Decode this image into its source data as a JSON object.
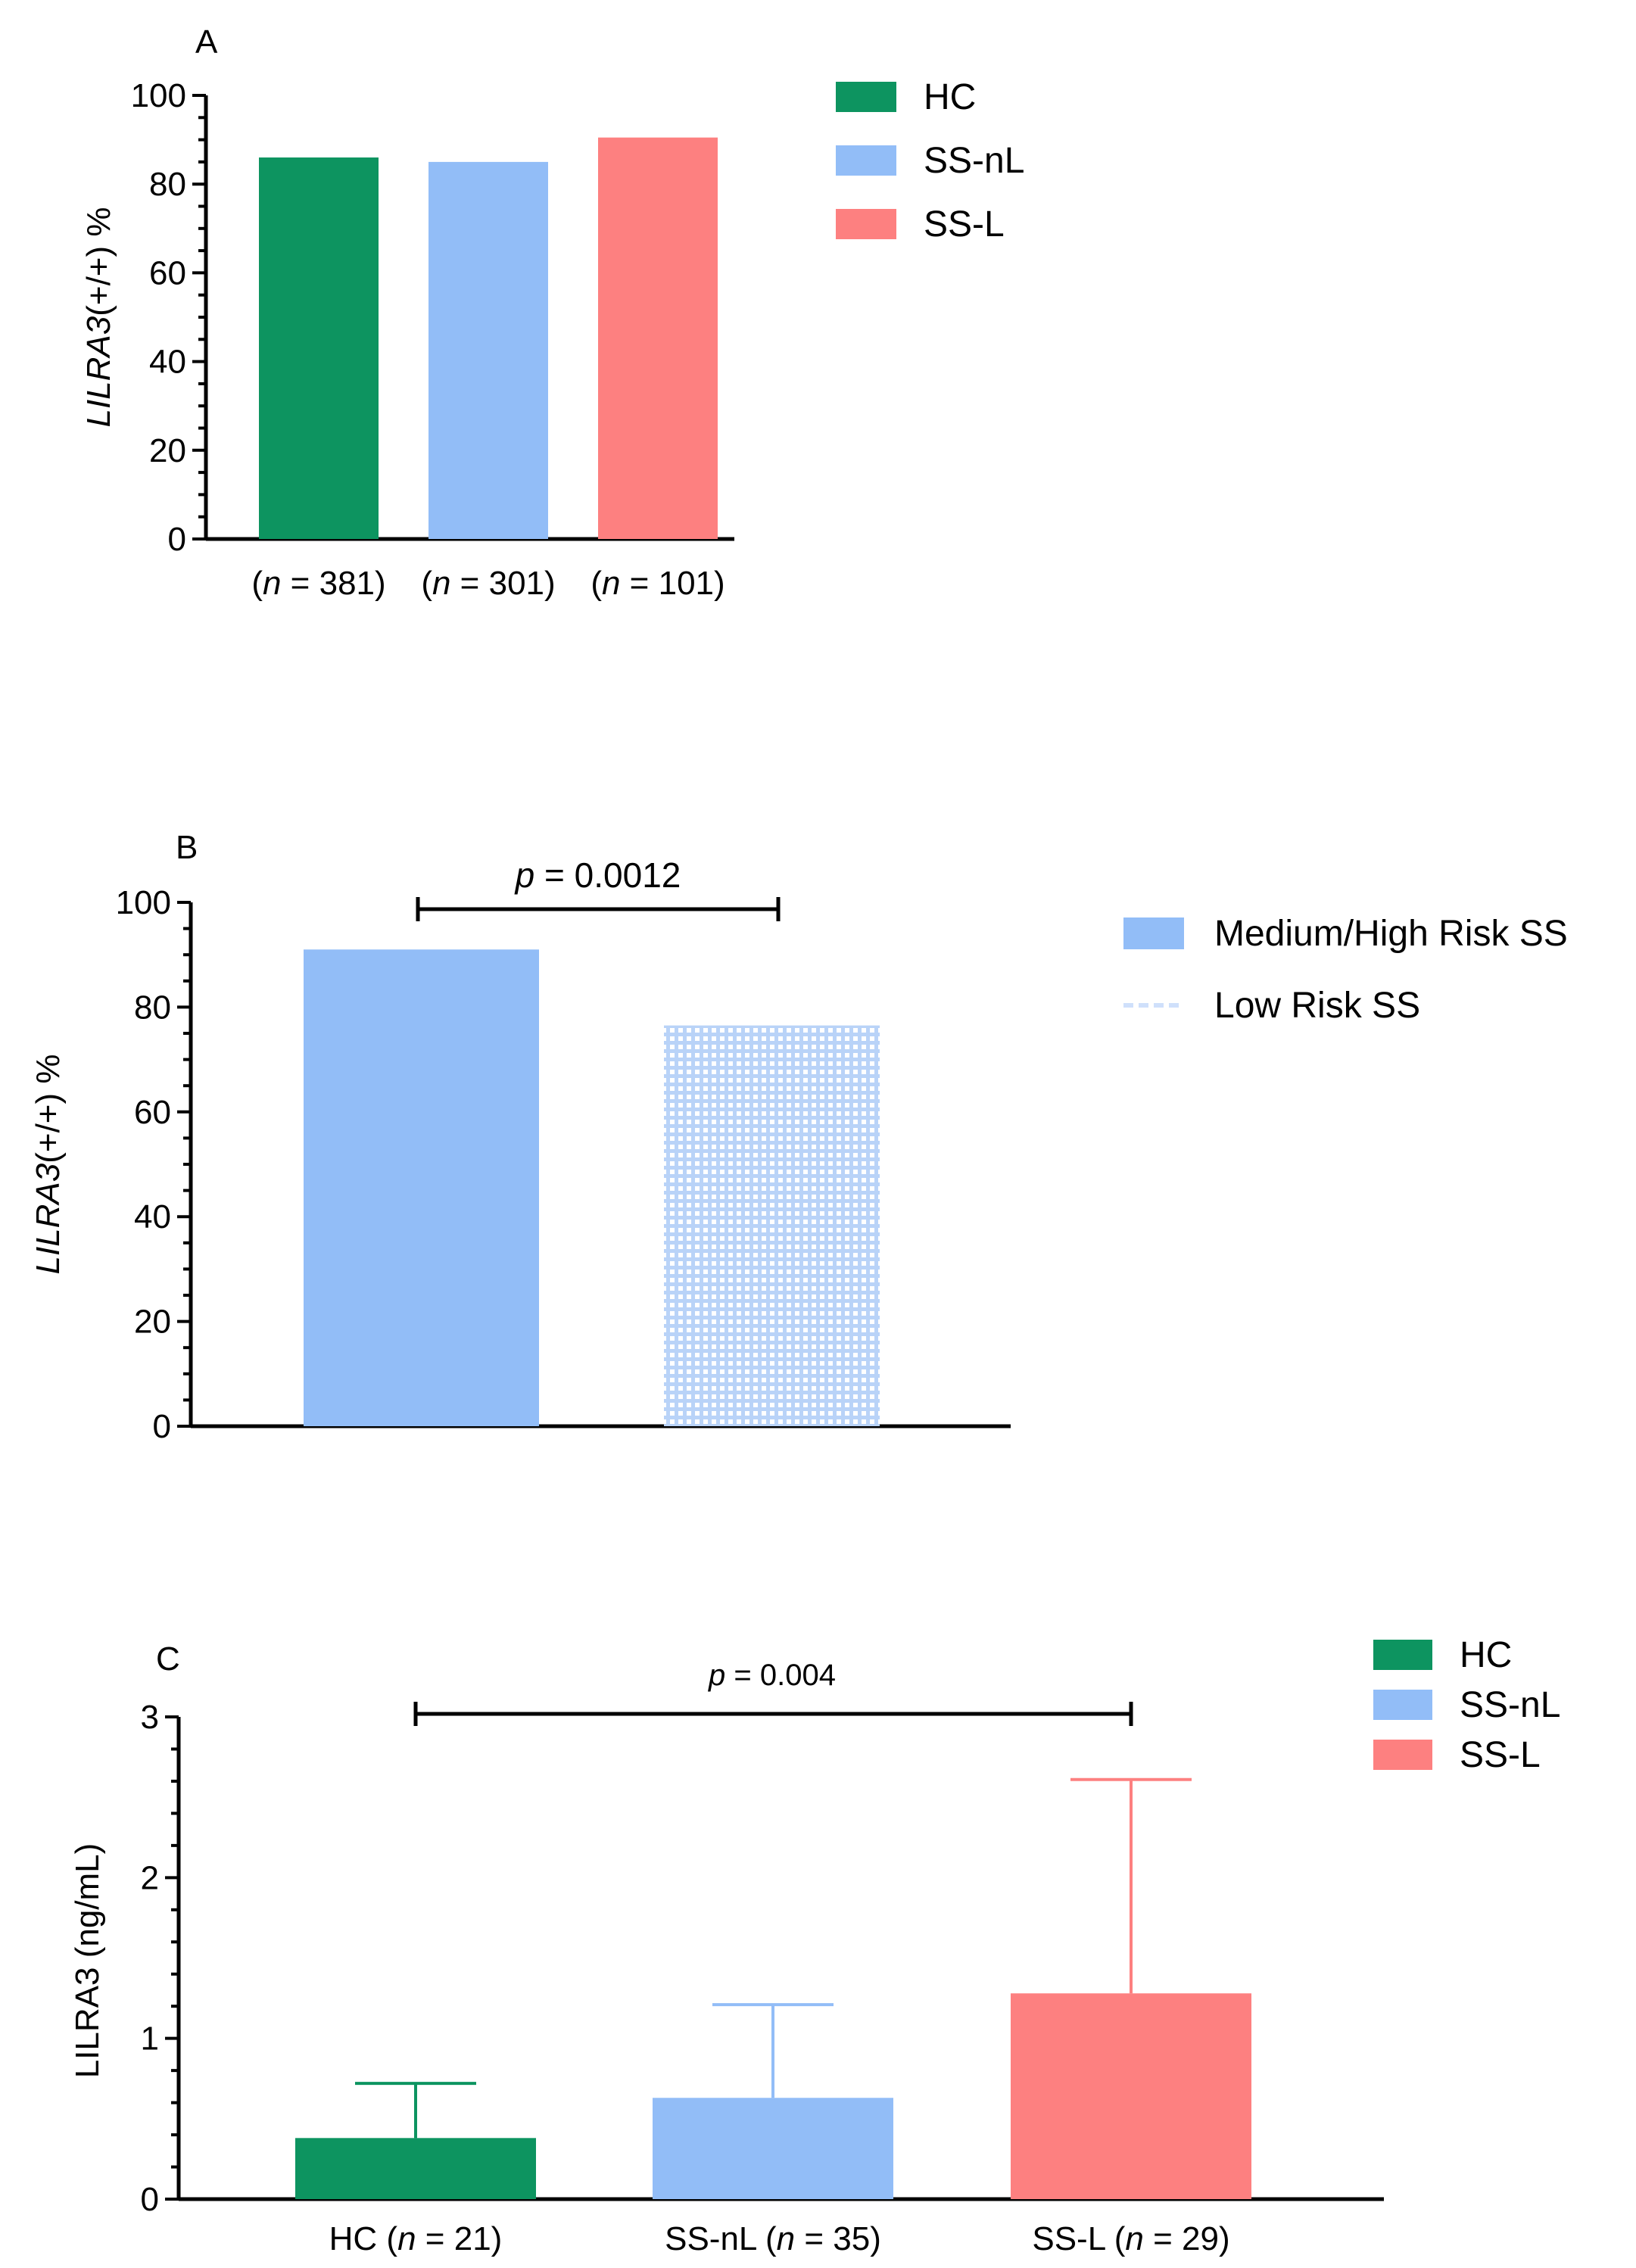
{
  "colors": {
    "HC": "#0d9460",
    "SS-nL": "#92bdf7",
    "SS-L": "#fd8080",
    "lowrisk_line": "#cfe0fb"
  },
  "chart_data": [
    {
      "panel": "A",
      "type": "bar",
      "ylabel_italic": "LILRA3",
      "ylabel_rest": "(+/+) %",
      "ylim": [
        0,
        100
      ],
      "yticks": [
        "0",
        "20",
        "40",
        "60",
        "80",
        "100"
      ],
      "categories": [
        "HC",
        "SS-nL",
        "SS-L"
      ],
      "values": [
        86,
        85,
        90.5
      ],
      "n_labels": [
        "381",
        "301",
        "101"
      ],
      "n_prefix": "n",
      "legend": [
        "HC",
        "SS-nL",
        "SS-L"
      ]
    },
    {
      "panel": "B",
      "type": "bar",
      "ylabel_italic": "LILRA3",
      "ylabel_rest": "(+/+) %",
      "ylim": [
        0,
        100
      ],
      "yticks": [
        "0",
        "20",
        "40",
        "60",
        "80",
        "100"
      ],
      "categories": [
        "Medium/High Risk SS",
        "Low Risk SS"
      ],
      "values": [
        91,
        76.5
      ],
      "legend": [
        "Medium/High Risk SS",
        "Low Risk SS"
      ],
      "p_label": "p",
      "p_value": "= 0.0012"
    },
    {
      "panel": "C",
      "type": "bar",
      "ylabel": "LILRA3 (ng/mL)",
      "ylim": [
        0,
        3
      ],
      "yticks": [
        "0",
        "1",
        "2",
        "3"
      ],
      "categories": [
        "HC",
        "SS-nL",
        "SS-L"
      ],
      "values": [
        0.38,
        0.63,
        1.28
      ],
      "error_upper": [
        0.72,
        1.21,
        2.61
      ],
      "n_labels": [
        "21",
        "35",
        "29"
      ],
      "n_prefix": "n",
      "legend": [
        "HC",
        "SS-nL",
        "SS-L"
      ],
      "p_label": "p",
      "p_value": "= 0.004"
    }
  ]
}
